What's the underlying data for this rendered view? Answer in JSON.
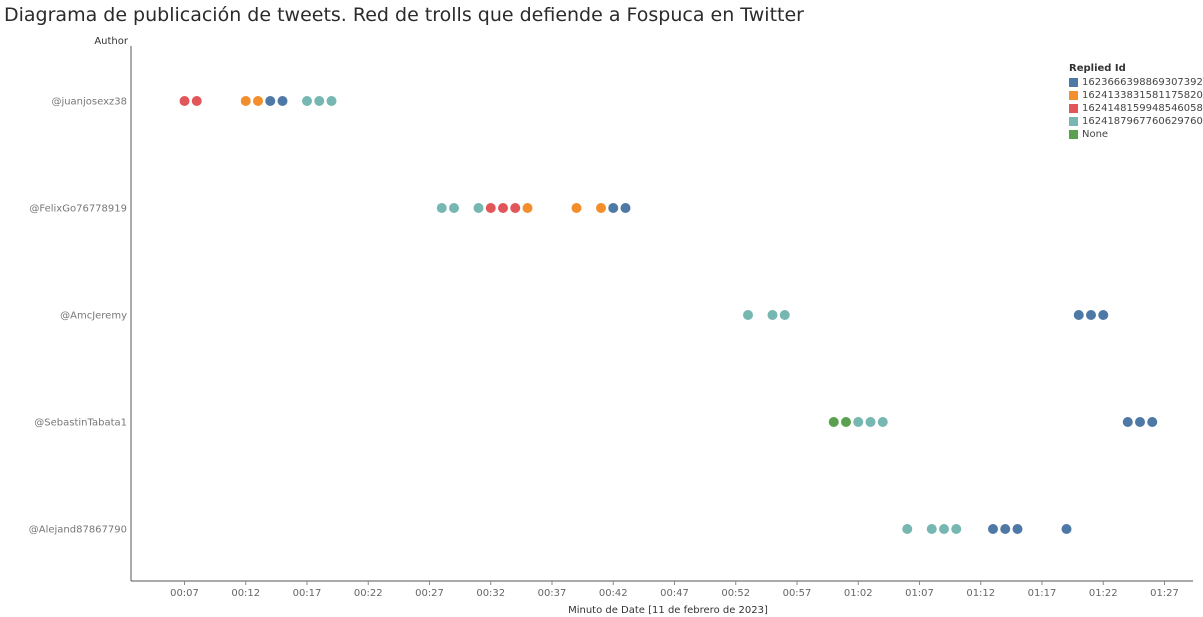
{
  "chart_data": {
    "type": "scatter",
    "title": "Diagrama de publicación de tweets. Red de trolls que defiende a Fospuca en Twitter",
    "xlabel": "Minuto de Date [11 de febrero de 2023]",
    "ylabel": "Author",
    "xlim_minutes": [
      3,
      88
    ],
    "xticks": [
      {
        "minute": 7,
        "label": "00:07"
      },
      {
        "minute": 12,
        "label": "00:12"
      },
      {
        "minute": 17,
        "label": "00:17"
      },
      {
        "minute": 22,
        "label": "00:22"
      },
      {
        "minute": 27,
        "label": "00:27"
      },
      {
        "minute": 32,
        "label": "00:32"
      },
      {
        "minute": 37,
        "label": "00:37"
      },
      {
        "minute": 42,
        "label": "00:42"
      },
      {
        "minute": 47,
        "label": "00:47"
      },
      {
        "minute": 52,
        "label": "00:52"
      },
      {
        "minute": 57,
        "label": "00:57"
      },
      {
        "minute": 62,
        "label": "01:02"
      },
      {
        "minute": 67,
        "label": "01:07"
      },
      {
        "minute": 72,
        "label": "01:12"
      },
      {
        "minute": 77,
        "label": "01:17"
      },
      {
        "minute": 82,
        "label": "01:22"
      },
      {
        "minute": 87,
        "label": "01:27"
      }
    ],
    "categories": [
      "@juanjosexz38",
      "@FelixGo76778919",
      "@AmcJeremy",
      "@SebastinTabata1",
      "@Alejand87867790"
    ],
    "legend": {
      "title": "Replied Id",
      "position": "top-right",
      "items": [
        {
          "name": "1623666398869307392",
          "color": "#4e79a7"
        },
        {
          "name": "1624133831581175820",
          "color": "#f28e2b"
        },
        {
          "name": "1624148159948546058",
          "color": "#e15759"
        },
        {
          "name": "1624187967760629760",
          "color": "#76b7b2"
        },
        {
          "name": "None",
          "color": "#59a14f"
        }
      ]
    },
    "grid": false,
    "points": [
      {
        "author": 0,
        "minute": 7,
        "reply": 2
      },
      {
        "author": 0,
        "minute": 8,
        "reply": 2
      },
      {
        "author": 0,
        "minute": 12,
        "reply": 1
      },
      {
        "author": 0,
        "minute": 13,
        "reply": 1
      },
      {
        "author": 0,
        "minute": 14,
        "reply": 0
      },
      {
        "author": 0,
        "minute": 15,
        "reply": 0
      },
      {
        "author": 0,
        "minute": 17,
        "reply": 3
      },
      {
        "author": 0,
        "minute": 18,
        "reply": 3
      },
      {
        "author": 0,
        "minute": 19,
        "reply": 3
      },
      {
        "author": 1,
        "minute": 28,
        "reply": 3
      },
      {
        "author": 1,
        "minute": 29,
        "reply": 3
      },
      {
        "author": 1,
        "minute": 31,
        "reply": 3
      },
      {
        "author": 1,
        "minute": 32,
        "reply": 2
      },
      {
        "author": 1,
        "minute": 33,
        "reply": 2
      },
      {
        "author": 1,
        "minute": 34,
        "reply": 2
      },
      {
        "author": 1,
        "minute": 35,
        "reply": 1
      },
      {
        "author": 1,
        "minute": 39,
        "reply": 1
      },
      {
        "author": 1,
        "minute": 41,
        "reply": 1
      },
      {
        "author": 1,
        "minute": 42,
        "reply": 0
      },
      {
        "author": 1,
        "minute": 43,
        "reply": 0
      },
      {
        "author": 2,
        "minute": 53,
        "reply": 3
      },
      {
        "author": 2,
        "minute": 55,
        "reply": 3
      },
      {
        "author": 2,
        "minute": 56,
        "reply": 3
      },
      {
        "author": 2,
        "minute": 80,
        "reply": 0
      },
      {
        "author": 2,
        "minute": 81,
        "reply": 0
      },
      {
        "author": 2,
        "minute": 82,
        "reply": 0
      },
      {
        "author": 3,
        "minute": 60,
        "reply": 4
      },
      {
        "author": 3,
        "minute": 61,
        "reply": 4
      },
      {
        "author": 3,
        "minute": 62,
        "reply": 3
      },
      {
        "author": 3,
        "minute": 63,
        "reply": 3
      },
      {
        "author": 3,
        "minute": 64,
        "reply": 3
      },
      {
        "author": 3,
        "minute": 84,
        "reply": 0
      },
      {
        "author": 3,
        "minute": 85,
        "reply": 0
      },
      {
        "author": 3,
        "minute": 86,
        "reply": 0
      },
      {
        "author": 4,
        "minute": 66,
        "reply": 3
      },
      {
        "author": 4,
        "minute": 68,
        "reply": 3
      },
      {
        "author": 4,
        "minute": 69,
        "reply": 3
      },
      {
        "author": 4,
        "minute": 70,
        "reply": 3
      },
      {
        "author": 4,
        "minute": 73,
        "reply": 0
      },
      {
        "author": 4,
        "minute": 74,
        "reply": 0
      },
      {
        "author": 4,
        "minute": 75,
        "reply": 0
      },
      {
        "author": 4,
        "minute": 79,
        "reply": 0
      }
    ]
  }
}
